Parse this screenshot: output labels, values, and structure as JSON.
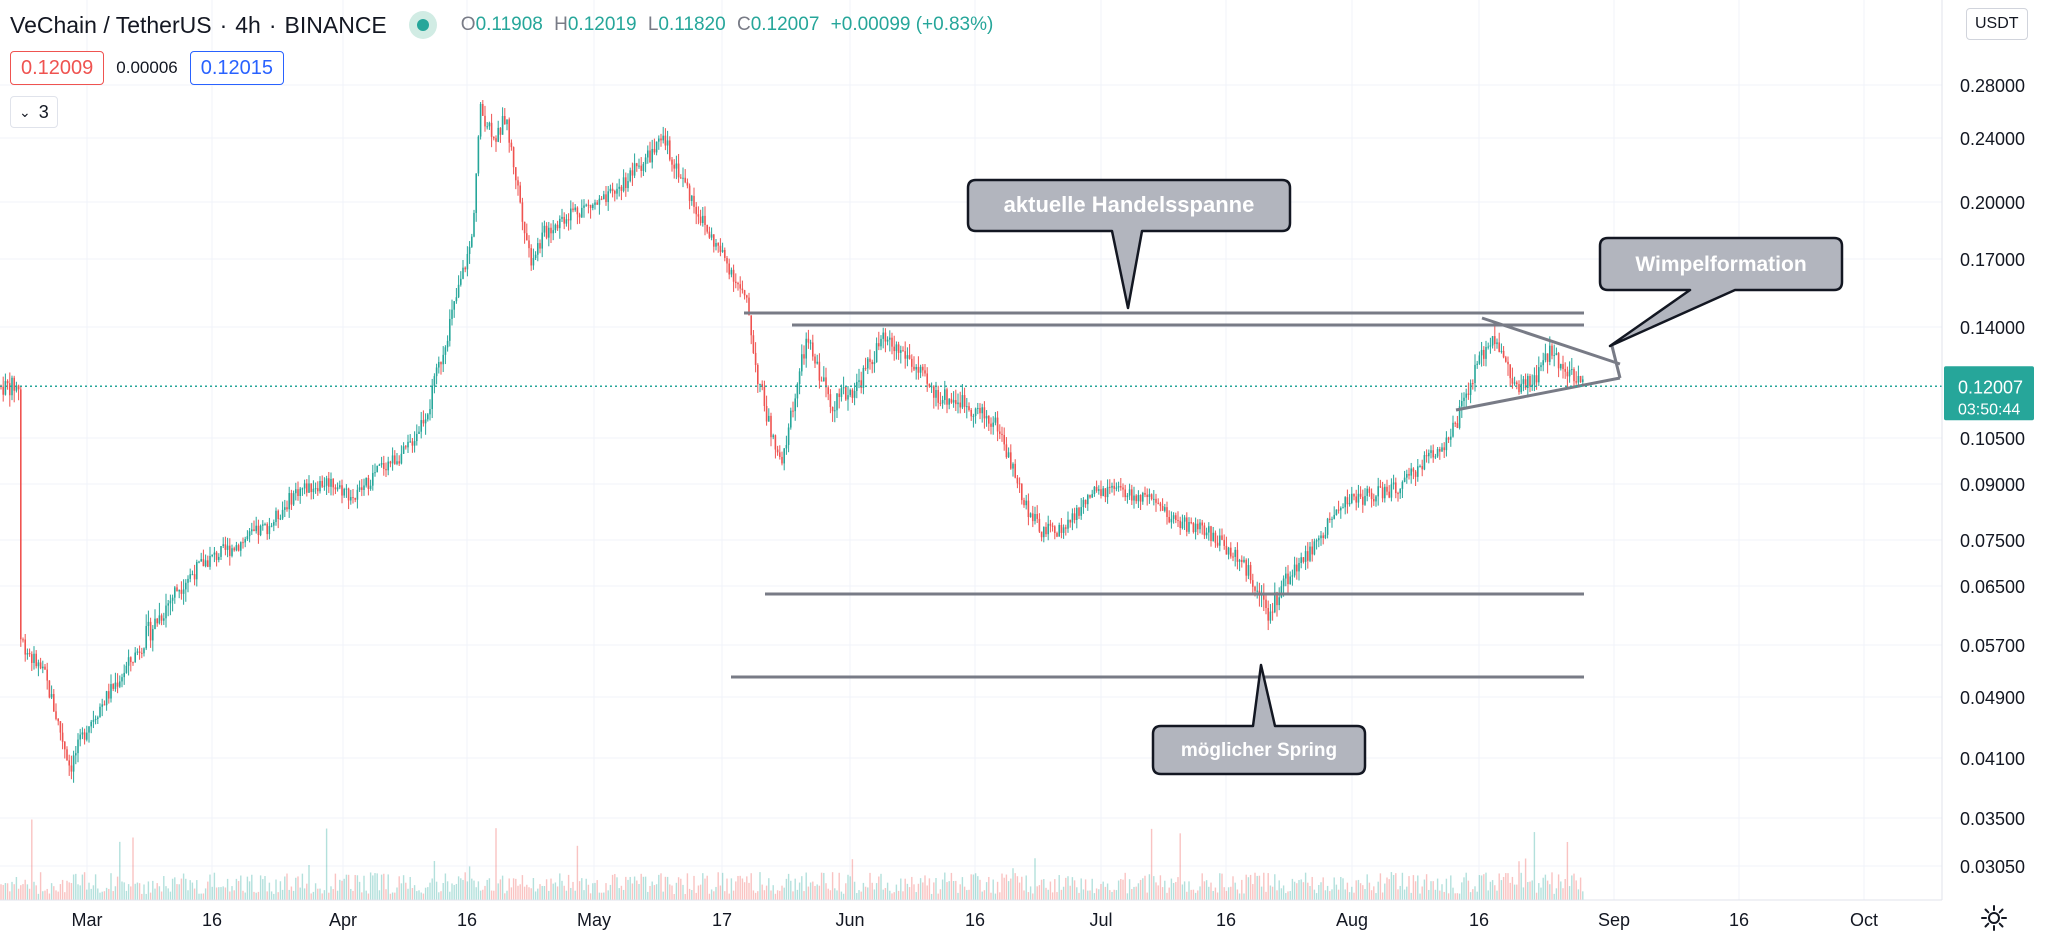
{
  "header": {
    "symbol": "VeChain / TetherUS",
    "interval": "4h",
    "exchange": "BINANCE",
    "separator": "·",
    "ohlc": {
      "o_label": "O",
      "open": "0.11908",
      "h_label": "H",
      "high": "0.12019",
      "l_label": "L",
      "low": "0.11820",
      "c_label": "C",
      "close": "0.12007",
      "change": "+0.00099 (+0.83%)"
    }
  },
  "quote": {
    "sell": "0.12009",
    "spread": "0.00006",
    "buy": "0.12015"
  },
  "indicators": {
    "collapsed_count": "3"
  },
  "scale": {
    "currency": "USDT"
  },
  "colors": {
    "up": "#26a69a",
    "down": "#ef5350",
    "drawing": "#787b86",
    "callout_fill": "#b2b5be"
  },
  "chart_data": {
    "type": "candlestick",
    "y_scale": "log",
    "ylim": [
      0.027,
      0.31
    ],
    "y_ticks": [
      "0.28000",
      "0.24000",
      "0.20000",
      "0.17000",
      "0.14000",
      "0.10500",
      "0.09000",
      "0.07500",
      "0.06500",
      "0.05700",
      "0.04900",
      "0.04100",
      "0.03500",
      "0.03050"
    ],
    "x_ticks": [
      "Mar",
      "16",
      "Apr",
      "16",
      "May",
      "17",
      "Jun",
      "16",
      "Jul",
      "16",
      "Aug",
      "16",
      "Sep",
      "16",
      "Oct"
    ],
    "last_price": "0.12007",
    "countdown": "03:50:44",
    "series": [
      {
        "name": "VETUSDT",
        "values": [
          [
            "2021-02-21",
            0.058
          ],
          [
            "2021-02-24",
            0.052
          ],
          [
            "2021-02-27",
            0.04
          ],
          [
            "2021-03-01",
            0.045
          ],
          [
            "2021-03-05",
            0.052
          ],
          [
            "2021-03-08",
            0.058
          ],
          [
            "2021-03-12",
            0.065
          ],
          [
            "2021-03-15",
            0.07
          ],
          [
            "2021-03-19",
            0.074
          ],
          [
            "2021-03-23",
            0.079
          ],
          [
            "2021-03-26",
            0.088
          ],
          [
            "2021-03-30",
            0.091
          ],
          [
            "2021-04-02",
            0.086
          ],
          [
            "2021-04-05",
            0.095
          ],
          [
            "2021-04-08",
            0.1
          ],
          [
            "2021-04-11",
            0.115
          ],
          [
            "2021-04-14",
            0.15
          ],
          [
            "2021-04-16",
            0.18
          ],
          [
            "2021-04-17",
            0.26
          ],
          [
            "2021-04-19",
            0.24
          ],
          [
            "2021-04-20",
            0.255
          ],
          [
            "2021-04-23",
            0.17
          ],
          [
            "2021-04-25",
            0.185
          ],
          [
            "2021-04-28",
            0.195
          ],
          [
            "2021-05-02",
            0.2
          ],
          [
            "2021-05-06",
            0.222
          ],
          [
            "2021-05-09",
            0.238
          ],
          [
            "2021-05-12",
            0.205
          ],
          [
            "2021-05-14",
            0.185
          ],
          [
            "2021-05-17",
            0.165
          ],
          [
            "2021-05-19",
            0.148
          ],
          [
            "2021-05-20",
            0.125
          ],
          [
            "2021-05-23",
            0.095
          ],
          [
            "2021-05-24",
            0.11
          ],
          [
            "2021-05-26",
            0.135
          ],
          [
            "2021-05-29",
            0.115
          ],
          [
            "2021-06-01",
            0.12
          ],
          [
            "2021-06-04",
            0.135
          ],
          [
            "2021-06-07",
            0.13
          ],
          [
            "2021-06-10",
            0.118
          ],
          [
            "2021-06-14",
            0.115
          ],
          [
            "2021-06-18",
            0.108
          ],
          [
            "2021-06-21",
            0.085
          ],
          [
            "2021-06-23",
            0.077
          ],
          [
            "2021-06-26",
            0.078
          ],
          [
            "2021-06-29",
            0.087
          ],
          [
            "2021-07-02",
            0.088
          ],
          [
            "2021-07-06",
            0.085
          ],
          [
            "2021-07-09",
            0.08
          ],
          [
            "2021-07-13",
            0.077
          ],
          [
            "2021-07-16",
            0.072
          ],
          [
            "2021-07-19",
            0.065
          ],
          [
            "2021-07-20",
            0.06
          ],
          [
            "2021-07-22",
            0.066
          ],
          [
            "2021-07-26",
            0.074
          ],
          [
            "2021-07-29",
            0.085
          ],
          [
            "2021-08-02",
            0.087
          ],
          [
            "2021-08-05",
            0.089
          ],
          [
            "2021-08-08",
            0.098
          ],
          [
            "2021-08-11",
            0.105
          ],
          [
            "2021-08-14",
            0.125
          ],
          [
            "2021-08-16",
            0.138
          ],
          [
            "2021-08-19",
            0.118
          ],
          [
            "2021-08-21",
            0.122
          ],
          [
            "2021-08-23",
            0.132
          ],
          [
            "2021-08-25",
            0.125
          ],
          [
            "2021-08-27",
            0.12
          ]
        ]
      }
    ],
    "annotations": [
      {
        "text": "aktuelle Handelsspanne"
      },
      {
        "text": "Wimpelformation"
      },
      {
        "text": "möglicher Spring"
      }
    ]
  }
}
